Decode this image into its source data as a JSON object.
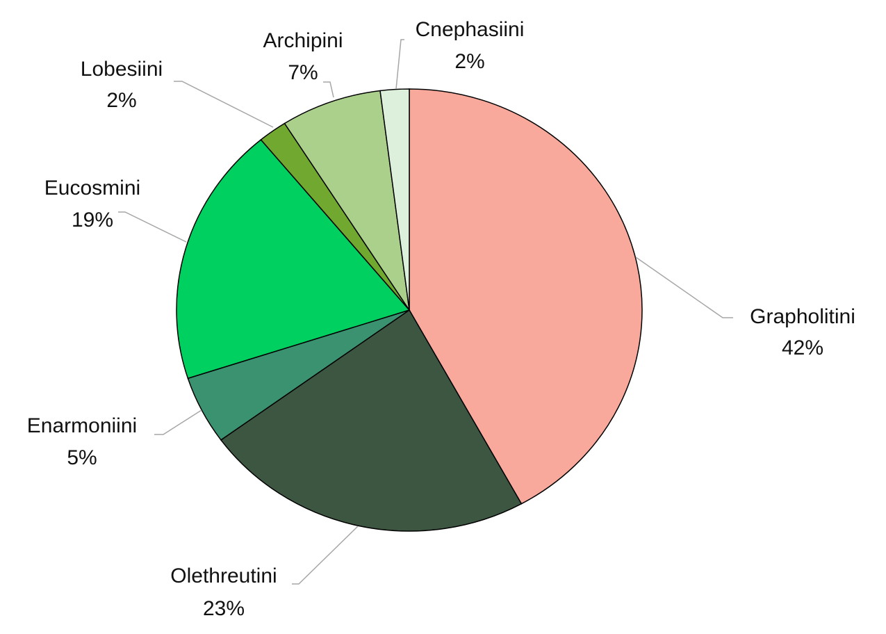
{
  "chart_data": {
    "type": "pie",
    "categories": [
      "Grapholitini",
      "Olethreutini",
      "Enarmoniini",
      "Eucosmini",
      "Lobesiini",
      "Archipini",
      "Cnephasiini"
    ],
    "values": [
      42,
      23,
      5,
      19,
      2,
      7,
      2
    ],
    "value_labels": [
      "42%",
      "23%",
      "5%",
      "19%",
      "2%",
      "7%",
      "2%"
    ],
    "colors": [
      "#f9a99b",
      "#3d5641",
      "#3a9270",
      "#00d060",
      "#70a830",
      "#aad08c",
      "#dcf0dc"
    ]
  }
}
